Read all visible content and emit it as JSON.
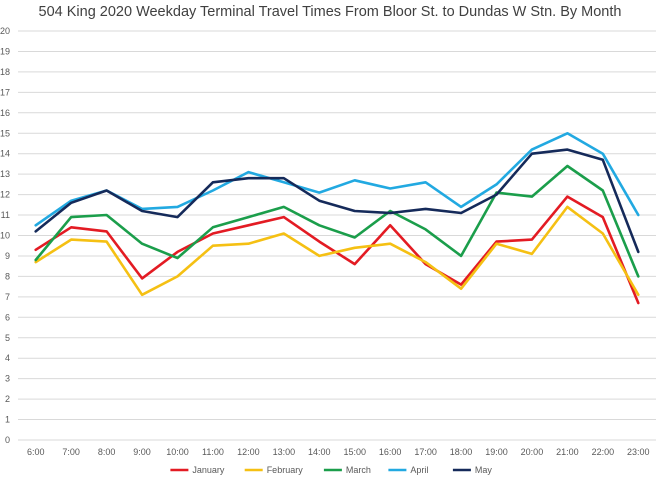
{
  "chart_data": {
    "type": "line",
    "title": "504 King 2020 Weekday Terminal Travel Times From Bloor St. to Dundas W Stn. By Month",
    "xlabel": "",
    "ylabel": "",
    "ylim": [
      0,
      20
    ],
    "y_ticks": [
      "0",
      "1",
      "2",
      "3",
      "4",
      "5",
      "6",
      "7",
      "8",
      "9",
      "10",
      "11",
      "12",
      "13",
      "14",
      "15",
      "16",
      "17",
      "18",
      "19",
      "20"
    ],
    "grid": true,
    "legend_position": "bottom",
    "categories": [
      "6:00",
      "7:00",
      "8:00",
      "9:00",
      "10:00",
      "11:00",
      "12:00",
      "13:00",
      "14:00",
      "15:00",
      "16:00",
      "17:00",
      "18:00",
      "19:00",
      "20:00",
      "21:00",
      "22:00",
      "23:00"
    ],
    "series": [
      {
        "name": "January",
        "color": "#e31b23",
        "values": [
          9.3,
          10.4,
          10.2,
          7.9,
          9.2,
          10.1,
          10.5,
          10.9,
          9.7,
          8.6,
          10.5,
          8.6,
          7.6,
          9.7,
          9.8,
          11.9,
          10.9,
          6.7
        ]
      },
      {
        "name": "February",
        "color": "#f5c013",
        "values": [
          8.7,
          9.8,
          9.7,
          7.1,
          8.0,
          9.5,
          9.6,
          10.1,
          9.0,
          9.4,
          9.6,
          8.7,
          7.4,
          9.6,
          9.1,
          11.4,
          10.1,
          7.1
        ]
      },
      {
        "name": "March",
        "color": "#1b9e4b",
        "values": [
          8.8,
          10.9,
          11.0,
          9.6,
          8.9,
          10.4,
          10.9,
          11.4,
          10.5,
          9.9,
          11.2,
          10.3,
          9.0,
          12.1,
          11.9,
          13.4,
          12.2,
          8.0
        ]
      },
      {
        "name": "April",
        "color": "#22a9e1",
        "values": [
          10.5,
          11.7,
          12.2,
          11.3,
          11.4,
          12.2,
          13.1,
          12.6,
          12.1,
          12.7,
          12.3,
          12.6,
          11.4,
          12.5,
          14.2,
          15.0,
          14.0,
          11.0
        ]
      },
      {
        "name": "May",
        "color": "#152a5a",
        "values": [
          10.2,
          11.6,
          12.2,
          11.2,
          10.9,
          12.6,
          12.8,
          12.8,
          11.7,
          11.2,
          11.1,
          11.3,
          11.1,
          12.0,
          14.0,
          14.2,
          13.7,
          9.2
        ]
      }
    ]
  }
}
